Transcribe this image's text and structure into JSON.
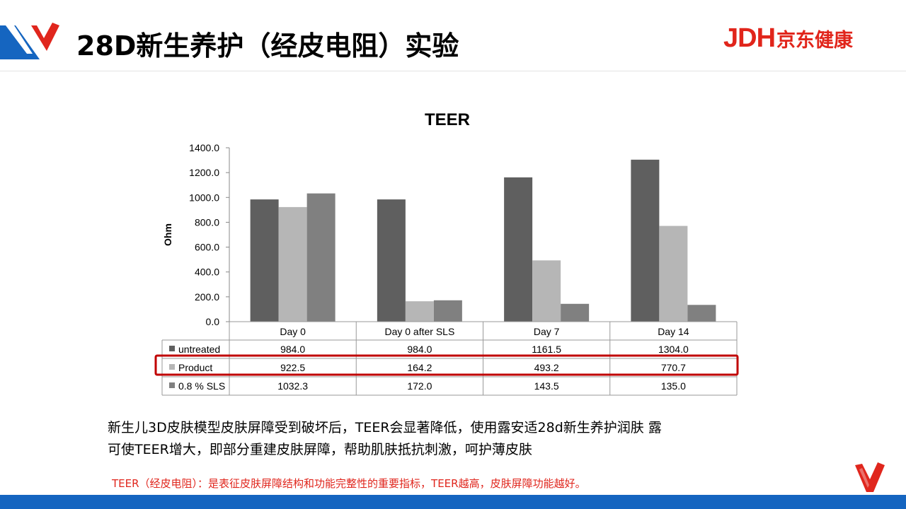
{
  "header": {
    "title": "28D新生养护（经皮电阻）实验",
    "brand_latin": "JDH",
    "brand_cn": "京东健康"
  },
  "colors": {
    "untreated": "#5f5f5f",
    "product": "#b6b6b6",
    "sls": "#808080",
    "highlight_box": "#c00000",
    "accent_red": "#e0261d",
    "bottom_bar": "#1565c0"
  },
  "chart_data": {
    "type": "bar",
    "title": "TEER",
    "ylabel": "Ohm",
    "ylim": [
      0,
      1400
    ],
    "y_ticks": [
      "1400.0",
      "1200.0",
      "1000.0",
      "800.0",
      "600.0",
      "400.0",
      "200.0",
      "0.0"
    ],
    "y_tick_values": [
      1400,
      1200,
      1000,
      800,
      600,
      400,
      200,
      0
    ],
    "categories": [
      "Day 0",
      "Day 0 after SLS",
      "Day 7",
      "Day 14"
    ],
    "series": [
      {
        "name": "untreated",
        "values": [
          984.0,
          984.0,
          1161.5,
          1304.0
        ],
        "labels": [
          "984.0",
          "984.0",
          "1161.5",
          "1304.0"
        ]
      },
      {
        "name": "Product",
        "values": [
          922.5,
          164.2,
          493.2,
          770.7
        ],
        "labels": [
          "922.5",
          "164.2",
          "493.2",
          "770.7"
        ]
      },
      {
        "name": "0.8 % SLS",
        "values": [
          1032.3,
          172.0,
          143.5,
          135.0
        ],
        "labels": [
          "1032.3",
          "172.0",
          "143.5",
          "135.0"
        ]
      }
    ],
    "grid": false,
    "legend": "data-table",
    "highlighted_series": "Product"
  },
  "description": {
    "line1": "新生儿3D皮肤模型皮肤屏障受到破坏后，TEER会显著降低，使用露安适28d新生养护润肤 露",
    "line2": "可使TEER增大，即部分重建皮肤屏障，帮助肌肤抵抗刺激，呵护薄皮肤"
  },
  "note": "TEER（经皮电阻）：是表征皮肤屏障结构和功能完整性的重要指标，TEER越高，皮肤屏障功能越好。"
}
